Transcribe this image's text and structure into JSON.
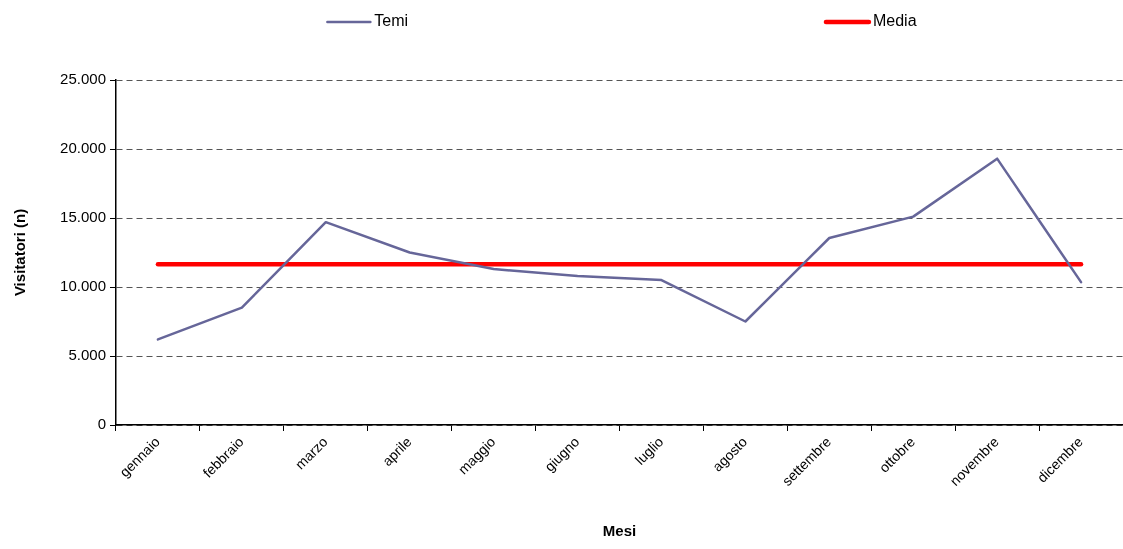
{
  "chart_data": {
    "type": "line",
    "xlabel": "Mesi",
    "ylabel": "Visitatori (n)",
    "categories": [
      "gennaio",
      "febbraio",
      "marzo",
      "aprile",
      "maggio",
      "giugno",
      "luglio",
      "agosto",
      "settembre",
      "ottobre",
      "novembre",
      "dicembre"
    ],
    "series": [
      {
        "name": "Temi",
        "color": "#666699",
        "values": [
          6200,
          8500,
          14700,
          12500,
          11300,
          10800,
          10500,
          7500,
          13550,
          15100,
          19300,
          10350
        ]
      },
      {
        "name": "Media",
        "color": "#ff0000",
        "values": [
          11650,
          11650,
          11650,
          11650,
          11650,
          11650,
          11650,
          11650,
          11650,
          11650,
          11650,
          11650
        ]
      }
    ],
    "ylim": [
      0,
      25000
    ],
    "yticks": [
      {
        "value": 0,
        "label": "0"
      },
      {
        "value": 5000,
        "label": "5.000"
      },
      {
        "value": 10000,
        "label": "10.000"
      },
      {
        "value": 15000,
        "label": "15.000"
      },
      {
        "value": 20000,
        "label": "20.000"
      },
      {
        "value": 25000,
        "label": "25.000"
      }
    ],
    "grid": "y",
    "legend": "top",
    "marker": "none"
  }
}
